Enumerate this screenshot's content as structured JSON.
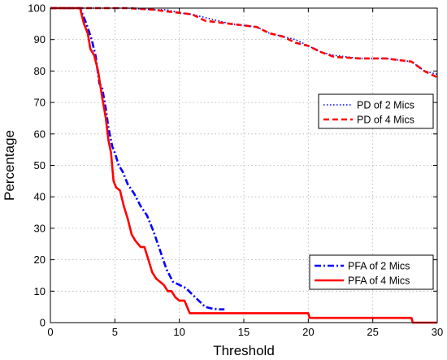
{
  "chart_data": {
    "type": "line",
    "xlabel": "Threshold",
    "ylabel": "Percentage",
    "xlim": [
      0,
      30
    ],
    "ylim": [
      0,
      100
    ],
    "xticks": [
      0,
      5,
      10,
      15,
      20,
      25,
      30
    ],
    "yticks": [
      0,
      10,
      20,
      30,
      40,
      50,
      60,
      70,
      80,
      90,
      100
    ],
    "xtick_labels": [
      "0",
      "5",
      "10",
      "15",
      "20",
      "25",
      "30"
    ],
    "ytick_labels": [
      "0",
      "10",
      "20",
      "30",
      "40",
      "50",
      "60",
      "70",
      "80",
      "90",
      "100"
    ],
    "grid": true,
    "series": [
      {
        "name": "PD of 2 Mics",
        "color": "#0000ff",
        "style": "dotted",
        "legend_group": 0,
        "x": [
          0,
          2,
          4,
          6,
          8,
          9,
          10,
          11,
          12,
          14,
          16,
          17,
          18,
          19,
          20,
          21,
          22,
          24,
          26,
          27,
          28,
          29,
          30
        ],
        "y": [
          100,
          100,
          100,
          100,
          99.5,
          99.5,
          98.5,
          98,
          97,
          95,
          94,
          92,
          91,
          90,
          88,
          86,
          85,
          84,
          84,
          83.5,
          83,
          80,
          79
        ]
      },
      {
        "name": "PD of 4 Mics",
        "color": "#ff0000",
        "style": "dashed",
        "legend_group": 0,
        "x": [
          0,
          2,
          4,
          6,
          8,
          9,
          10,
          11,
          12,
          14,
          16,
          17,
          18,
          19,
          20,
          21,
          22,
          24,
          26,
          27,
          28,
          29,
          30
        ],
        "y": [
          100,
          100,
          100,
          100,
          99.5,
          99,
          98.5,
          98,
          96,
          95,
          94,
          92,
          91,
          89,
          88,
          86,
          84.5,
          84,
          84,
          83.5,
          83,
          80,
          78
        ]
      },
      {
        "name": "PFA of 2 Mics",
        "color": "#0000ff",
        "style": "dashdot",
        "legend_group": 1,
        "x": [
          0,
          2.3,
          2.8,
          3.2,
          3.5,
          3.8,
          4.0,
          4.3,
          4.5,
          4.8,
          5.0,
          5.3,
          5.6,
          6.0,
          6.5,
          7.0,
          7.5,
          8.0,
          8.5,
          9.0,
          9.5,
          10.0,
          10.5,
          11.0,
          11.5,
          12.0,
          12.5,
          13.0,
          13.5
        ],
        "y": [
          100,
          100,
          95,
          90,
          85,
          76,
          75,
          68,
          62,
          56,
          54,
          50,
          48,
          44,
          41,
          37,
          34,
          29,
          23,
          17,
          13,
          12,
          11,
          9,
          7,
          5,
          4.5,
          4.2,
          4.2
        ]
      },
      {
        "name": "PFA of 4 Mics",
        "color": "#ff0000",
        "style": "solid",
        "legend_group": 1,
        "x": [
          0,
          2.3,
          2.6,
          2.9,
          3.1,
          3.4,
          3.7,
          4.0,
          4.3,
          4.5,
          4.7,
          4.9,
          5.1,
          5.4,
          5.7,
          6.0,
          6.3,
          6.6,
          7.0,
          7.3,
          7.6,
          7.9,
          8.2,
          8.5,
          8.8,
          9.1,
          9.4,
          9.7,
          10.0,
          10.4,
          10.7,
          10.8,
          20.0,
          20.1,
          28.0,
          28.1,
          30
        ],
        "y": [
          100,
          100,
          95,
          92,
          87,
          85,
          80,
          72,
          65,
          58,
          54,
          45,
          43,
          42,
          37,
          33,
          28,
          26,
          24,
          24,
          20,
          16,
          14,
          13,
          12,
          10,
          10,
          8,
          7,
          7,
          4,
          3,
          3,
          1.5,
          1.5,
          0,
          0
        ]
      }
    ]
  }
}
